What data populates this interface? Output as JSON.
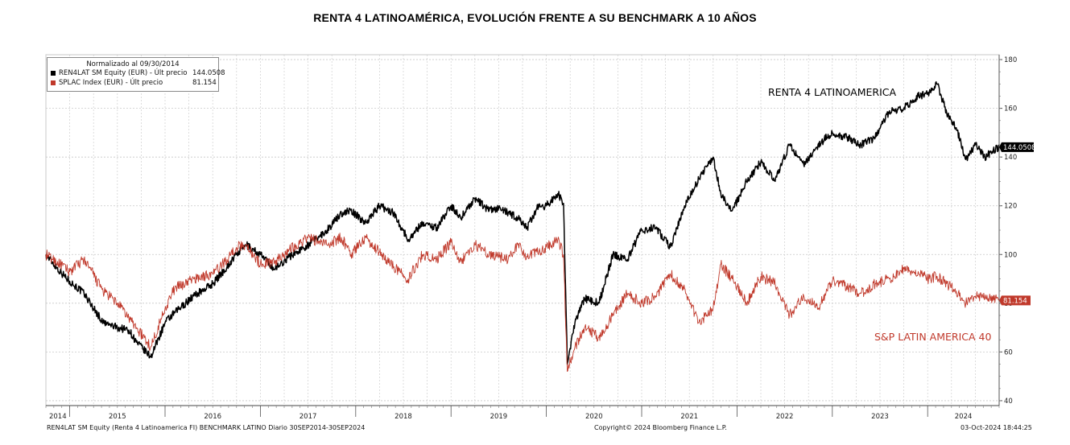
{
  "chart_data": {
    "type": "line",
    "title": "RENTA 4 LATINOAMÉRICA, EVOLUCIÓN FRENTE A SU BENCHMARK A 10 AÑOS",
    "legend": {
      "header": "Normalizado al 09/30/2014",
      "placement": "top-left",
      "entries": [
        {
          "label": "REN4LAT SM Equity (EUR) - Últ precio",
          "value": "144.0508",
          "color": "#000000"
        },
        {
          "label": "SPLAC Index (EUR) - Últ precio",
          "value": "81.154",
          "color": "#c0392b"
        }
      ]
    },
    "x_range": [
      "2014-09-30",
      "2024-09-30"
    ],
    "x_tick_labels": [
      "2014",
      "2015",
      "2016",
      "2017",
      "2018",
      "2019",
      "2020",
      "2021",
      "2022",
      "2023",
      "2024"
    ],
    "y_tick_labels": [
      "40",
      "60",
      "80",
      "100",
      "120",
      "140",
      "160",
      "180"
    ],
    "y_ticks": [
      40,
      60,
      80,
      100,
      120,
      140,
      160,
      180
    ],
    "ylim": [
      38,
      182
    ],
    "y_axis_side": "right",
    "grid": true,
    "series": [
      {
        "name": "RENTA 4 LATINOAMERICA",
        "color": "#000000",
        "last_label": "144.0508",
        "x": [
          2014.75,
          2014.9,
          2015.0,
          2015.15,
          2015.35,
          2015.5,
          2015.62,
          2015.7,
          2015.85,
          2016.0,
          2016.1,
          2016.3,
          2016.5,
          2016.65,
          2016.75,
          2016.85,
          2017.0,
          2017.15,
          2017.3,
          2017.5,
          2017.7,
          2017.85,
          2017.95,
          2018.1,
          2018.25,
          2018.4,
          2018.55,
          2018.7,
          2018.85,
          2019.0,
          2019.1,
          2019.25,
          2019.4,
          2019.5,
          2019.6,
          2019.7,
          2019.8,
          2019.9,
          2020.0,
          2020.12,
          2020.18,
          2020.22,
          2020.3,
          2020.4,
          2020.55,
          2020.7,
          2020.85,
          2021.0,
          2021.15,
          2021.3,
          2021.45,
          2021.6,
          2021.75,
          2021.83,
          2021.95,
          2022.1,
          2022.25,
          2022.4,
          2022.55,
          2022.7,
          2022.85,
          2023.0,
          2023.15,
          2023.3,
          2023.45,
          2023.6,
          2023.75,
          2023.9,
          2024.0,
          2024.1,
          2024.2,
          2024.3,
          2024.4,
          2024.5,
          2024.6,
          2024.75
        ],
        "y": [
          100,
          93,
          89,
          84,
          72,
          70,
          69,
          64,
          58,
          72,
          76,
          83,
          88,
          95,
          100,
          104,
          100,
          94,
          99,
          104,
          110,
          117,
          118,
          113,
          120,
          117,
          106,
          113,
          111,
          120,
          115,
          123,
          118,
          119,
          117,
          115,
          111,
          119,
          120,
          125,
          121,
          55,
          72,
          82,
          80,
          100,
          98,
          110,
          111,
          103,
          120,
          131,
          140,
          125,
          118,
          130,
          138,
          130,
          145,
          137,
          145,
          150,
          148,
          145,
          148,
          159,
          160,
          165,
          166,
          170,
          158,
          152,
          139,
          145,
          140,
          144.05
        ]
      },
      {
        "name": "S&P LATIN AMERICA 40",
        "color": "#c0392b",
        "last_label": "81.154",
        "x": [
          2014.75,
          2014.9,
          2015.0,
          2015.15,
          2015.35,
          2015.5,
          2015.62,
          2015.7,
          2015.85,
          2016.0,
          2016.1,
          2016.3,
          2016.5,
          2016.65,
          2016.75,
          2016.85,
          2017.0,
          2017.15,
          2017.3,
          2017.5,
          2017.7,
          2017.85,
          2017.95,
          2018.1,
          2018.25,
          2018.4,
          2018.55,
          2018.7,
          2018.85,
          2019.0,
          2019.1,
          2019.25,
          2019.4,
          2019.5,
          2019.6,
          2019.7,
          2019.8,
          2019.9,
          2020.0,
          2020.12,
          2020.18,
          2020.22,
          2020.3,
          2020.4,
          2020.55,
          2020.7,
          2020.85,
          2021.0,
          2021.15,
          2021.3,
          2021.45,
          2021.6,
          2021.75,
          2021.83,
          2021.95,
          2022.1,
          2022.25,
          2022.4,
          2022.55,
          2022.7,
          2022.85,
          2023.0,
          2023.15,
          2023.3,
          2023.45,
          2023.6,
          2023.75,
          2023.9,
          2024.0,
          2024.1,
          2024.2,
          2024.3,
          2024.4,
          2024.5,
          2024.6,
          2024.75
        ],
        "y": [
          100,
          96,
          93,
          98,
          85,
          80,
          74,
          70,
          62,
          78,
          86,
          90,
          92,
          98,
          103,
          104,
          96,
          97,
          102,
          107,
          104,
          107,
          100,
          107,
          101,
          95,
          90,
          100,
          98,
          105,
          97,
          104,
          100,
          99,
          98,
          104,
          99,
          101,
          103,
          106,
          100,
          52,
          62,
          70,
          66,
          75,
          84,
          80,
          83,
          92,
          86,
          72,
          78,
          96,
          90,
          80,
          91,
          88,
          75,
          83,
          78,
          89,
          87,
          84,
          88,
          90,
          94,
          93,
          90,
          91,
          88,
          85,
          80,
          83,
          82,
          81.15
        ]
      }
    ],
    "annotations": [
      {
        "text": "RENTA 4 LATINOAMERICA",
        "color": "#000000"
      },
      {
        "text": "S&P LATIN AMERICA 40",
        "color": "#c0392b"
      }
    ]
  },
  "footer": {
    "left": "REN4LAT SM Equity (Renta 4 Latinoamerica FI) BENCHMARK LATINO  Diario 30SEP2014-30SEP2024",
    "center": "Copyright© 2024 Bloomberg Finance L.P.",
    "right": "03-Oct-2024 18:44:25"
  }
}
